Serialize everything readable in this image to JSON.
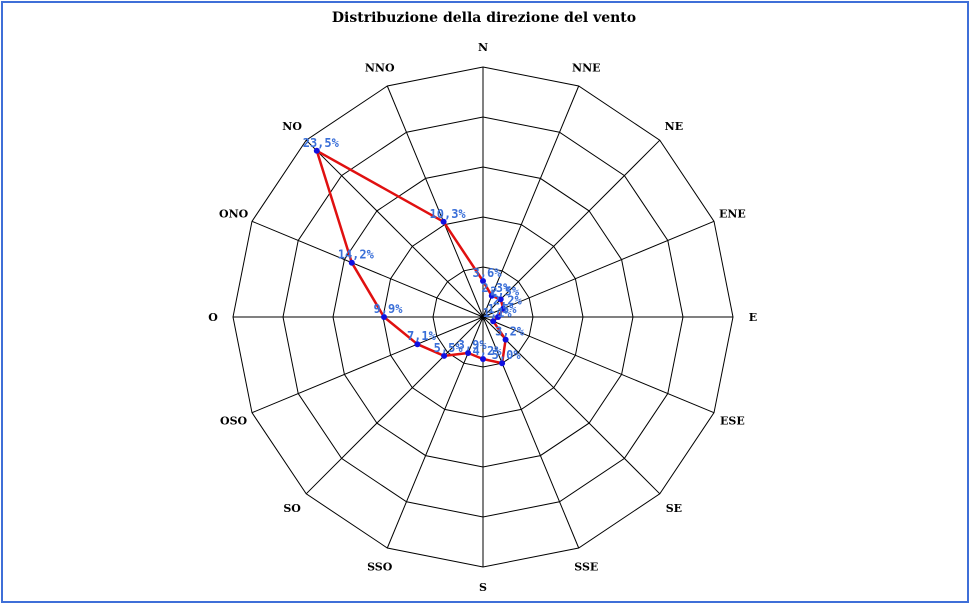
{
  "chart_data": {
    "type": "radar",
    "title": "Distribuzione della direzione del vento",
    "categories": [
      "N",
      "NNE",
      "NE",
      "ENE",
      "E",
      "ESE",
      "SE",
      "SSE",
      "S",
      "SSO",
      "SO",
      "OSO",
      "O",
      "ONO",
      "NO",
      "NNO"
    ],
    "values": [
      3.6,
      2.3,
      2.5,
      2.2,
      1.5,
      1.1,
      3.2,
      5.0,
      4.2,
      3.9,
      5.5,
      7.1,
      9.9,
      14.2,
      23.5,
      10.3
    ],
    "value_labels": [
      "3,6%",
      "2,3%",
      "2,5%",
      "2,2%",
      "1,5%",
      "1,1%",
      "3,2%",
      "5,0%",
      "4,2%",
      "3,9%",
      "5,5%",
      "7,1%",
      "9,9%",
      "14,2%",
      "23,5%",
      "10,3%"
    ],
    "rmax": 25,
    "rings": 5,
    "grid": true,
    "colors": {
      "line": "#e01010",
      "marker": "#1010e0",
      "value_label": "#3a6fd8",
      "grid": "#000000",
      "frame": "#3f6fd8"
    }
  }
}
